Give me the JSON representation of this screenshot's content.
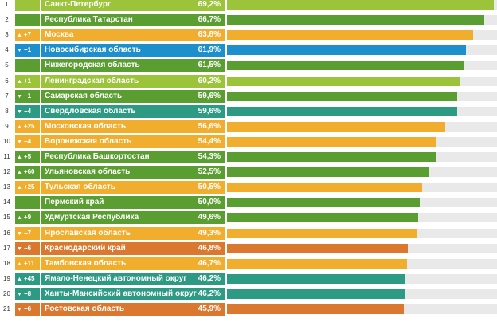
{
  "colors": {
    "light-green": "#9bc43b",
    "dark-green": "#5a9e32",
    "orange": "#f0ad2e",
    "blue": "#1d8fcd",
    "teal": "#2d9a83",
    "dark-orange": "#d9782e"
  },
  "chart_data": {
    "type": "bar",
    "orientation": "horizontal",
    "xlim": [
      0,
      70
    ],
    "grid": false,
    "rows": [
      {
        "rank": "1",
        "change": "",
        "dir": "",
        "name": "Санкт-Петербург",
        "value": 69.2,
        "value_label": "69,2%",
        "color": "light-green"
      },
      {
        "rank": "2",
        "change": "",
        "dir": "",
        "name": "Республика Татарстан",
        "value": 66.7,
        "value_label": "66,7%",
        "color": "dark-green"
      },
      {
        "rank": "3",
        "change": "+7",
        "dir": "up",
        "name": "Москва",
        "value": 63.8,
        "value_label": "63,8%",
        "color": "orange"
      },
      {
        "rank": "4",
        "change": "−1",
        "dir": "down",
        "name": "Новосибирская область",
        "value": 61.9,
        "value_label": "61,9%",
        "color": "blue"
      },
      {
        "rank": "5",
        "change": "",
        "dir": "",
        "name": "Нижегородская область",
        "value": 61.5,
        "value_label": "61,5%",
        "color": "dark-green"
      },
      {
        "rank": "6",
        "change": "+1",
        "dir": "up",
        "name": "Ленинградская область",
        "value": 60.2,
        "value_label": "60,2%",
        "color": "light-green"
      },
      {
        "rank": "7",
        "change": "−1",
        "dir": "down",
        "name": "Самарская область",
        "value": 59.6,
        "value_label": "59,6%",
        "color": "dark-green"
      },
      {
        "rank": "8",
        "change": "−4",
        "dir": "down",
        "name": "Свердловская область",
        "value": 59.6,
        "value_label": "59,6%",
        "color": "teal"
      },
      {
        "rank": "9",
        "change": "+25",
        "dir": "up",
        "name": "Московская область",
        "value": 56.6,
        "value_label": "56,6%",
        "color": "orange"
      },
      {
        "rank": "10",
        "change": "−4",
        "dir": "down",
        "name": "Воронежская область",
        "value": 54.4,
        "value_label": "54,4%",
        "color": "orange"
      },
      {
        "rank": "11",
        "change": "+5",
        "dir": "up",
        "name": "Республика Башкортостан",
        "value": 54.3,
        "value_label": "54,3%",
        "color": "dark-green"
      },
      {
        "rank": "12",
        "change": "+60",
        "dir": "up",
        "name": "Ульяновская область",
        "value": 52.5,
        "value_label": "52,5%",
        "color": "dark-green"
      },
      {
        "rank": "13",
        "change": "+25",
        "dir": "up",
        "name": "Тульская область",
        "value": 50.5,
        "value_label": "50,5%",
        "color": "orange"
      },
      {
        "rank": "14",
        "change": "",
        "dir": "",
        "name": "Пермский край",
        "value": 50.0,
        "value_label": "50,0%",
        "color": "dark-green"
      },
      {
        "rank": "15",
        "change": "+9",
        "dir": "up",
        "name": "Удмуртская Республика",
        "value": 49.6,
        "value_label": "49,6%",
        "color": "dark-green"
      },
      {
        "rank": "16",
        "change": "−7",
        "dir": "down",
        "name": "Ярославская область",
        "value": 49.3,
        "value_label": "49,3%",
        "color": "orange"
      },
      {
        "rank": "17",
        "change": "−6",
        "dir": "down",
        "name": "Краснодарский край",
        "value": 46.8,
        "value_label": "46,8%",
        "color": "dark-orange"
      },
      {
        "rank": "18",
        "change": "+11",
        "dir": "up",
        "name": "Тамбовская область",
        "value": 46.7,
        "value_label": "46,7%",
        "color": "orange"
      },
      {
        "rank": "19",
        "change": "+45",
        "dir": "up",
        "name": "Ямало-Ненецкий автономный округ",
        "value": 46.2,
        "value_label": "46,2%",
        "color": "teal"
      },
      {
        "rank": "20",
        "change": "−8",
        "dir": "down",
        "name": "Ханты-Мансийский автономный округ",
        "value": 46.2,
        "value_label": "46,2%",
        "color": "teal"
      },
      {
        "rank": "21",
        "change": "−6",
        "dir": "down",
        "name": "Ростовская область",
        "value": 45.9,
        "value_label": "45,9%",
        "color": "dark-orange"
      }
    ]
  }
}
